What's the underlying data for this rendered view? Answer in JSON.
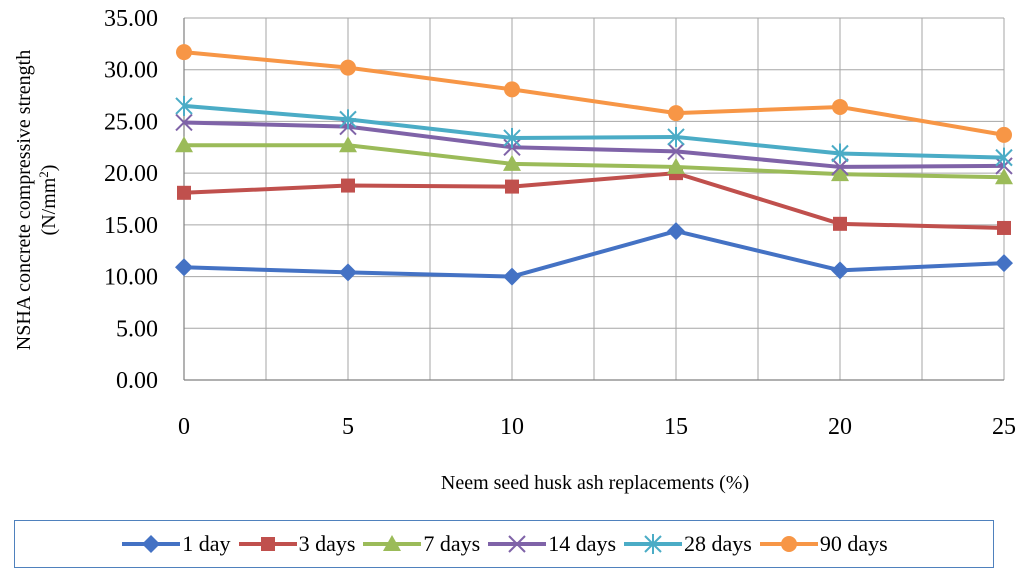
{
  "chart_data": {
    "type": "line",
    "title": "",
    "xlabel": "Neem seed husk ash replacements (%)",
    "ylabel_line1": "NSHA concrete compressive strength",
    "ylabel_line2_prefix": "(N/mm",
    "ylabel_line2_sup": "2",
    "ylabel_line2_suffix": ")",
    "x": [
      0,
      5,
      10,
      15,
      20,
      25
    ],
    "x_tick_labels": [
      "0",
      "5",
      "10",
      "15",
      "20",
      "25"
    ],
    "ylim": [
      0,
      35
    ],
    "y_ticks": [
      0,
      5,
      10,
      15,
      20,
      25,
      30,
      35
    ],
    "y_tick_labels": [
      "0.00",
      "5.00",
      "10.00",
      "15.00",
      "20.00",
      "25.00",
      "30.00",
      "35.00"
    ],
    "grid": true,
    "legend_position": "bottom",
    "series": [
      {
        "name": "1 day",
        "values": [
          10.9,
          10.4,
          10.0,
          14.4,
          10.6,
          11.3
        ],
        "color": "#4472C4",
        "marker": "diamond"
      },
      {
        "name": "3 days",
        "values": [
          18.1,
          18.8,
          18.7,
          20.0,
          15.1,
          14.7
        ],
        "color": "#C0504D",
        "marker": "square"
      },
      {
        "name": "7 days",
        "values": [
          22.7,
          22.7,
          20.9,
          20.6,
          19.9,
          19.6
        ],
        "color": "#9BBB59",
        "marker": "triangle"
      },
      {
        "name": "14 days",
        "values": [
          24.9,
          24.5,
          22.5,
          22.1,
          20.6,
          20.7
        ],
        "color": "#7F63A8",
        "marker": "x"
      },
      {
        "name": "28 days",
        "values": [
          26.5,
          25.2,
          23.4,
          23.5,
          21.9,
          21.5
        ],
        "color": "#4BACC6",
        "marker": "star"
      },
      {
        "name": "90 days",
        "values": [
          31.7,
          30.2,
          28.1,
          25.8,
          26.4,
          23.7
        ],
        "color": "#F79646",
        "marker": "circle"
      }
    ]
  }
}
